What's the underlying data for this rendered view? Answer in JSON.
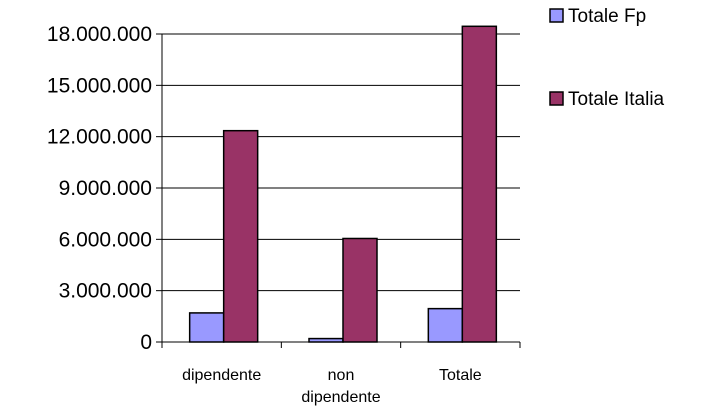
{
  "chart_data": {
    "type": "bar",
    "categories": [
      "dipendente",
      "non dipendente",
      "Totale"
    ],
    "category_lines": [
      [
        "dipendente"
      ],
      [
        "non",
        "dipendente"
      ],
      [
        "Totale"
      ]
    ],
    "series": [
      {
        "name": "Totale Fp",
        "values": [
          1700000,
          200000,
          1950000
        ],
        "color": "#9999ff"
      },
      {
        "name": "Totale Italia",
        "values": [
          12350000,
          6050000,
          18450000
        ],
        "color": "#993366"
      }
    ],
    "ylim": [
      0,
      18000000
    ],
    "yticks": [
      0,
      3000000,
      6000000,
      9000000,
      12000000,
      15000000,
      18000000
    ],
    "ytick_labels": [
      "0",
      "3.000.000",
      "6.000.000",
      "9.000.000",
      "12.000.000",
      "15.000.000",
      "18.000.000"
    ],
    "grid": true,
    "legend_position": "right",
    "title": "",
    "xlabel": "",
    "ylabel": ""
  }
}
